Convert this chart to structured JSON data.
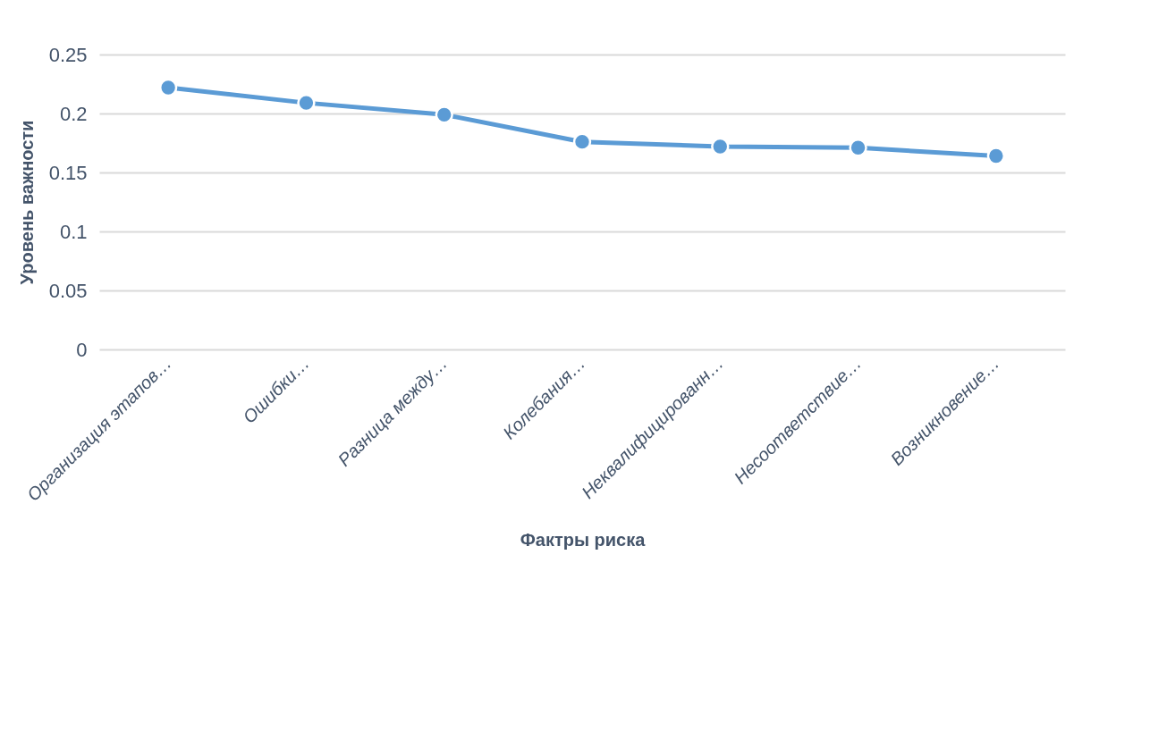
{
  "chart_data": {
    "type": "line",
    "xlabel": "Фактры риска",
    "ylabel": "Уровень важности",
    "categories": [
      "Организация этапов…",
      "Ошибки…",
      "Разница между…",
      "Колебания…",
      "Неквалифицированн…",
      "Несоответствие…",
      "Возникновение…"
    ],
    "series": [
      {
        "color": "#5b9bd5",
        "values": [
          0.222,
          0.209,
          0.199,
          0.176,
          0.172,
          0.171,
          0.164
        ]
      }
    ],
    "ylim": [
      0,
      0.25
    ],
    "yticks": [
      0,
      0.05,
      0.1,
      0.15,
      0.2,
      0.25
    ],
    "grid": "y",
    "marker": "circle",
    "line_style": "solid"
  }
}
